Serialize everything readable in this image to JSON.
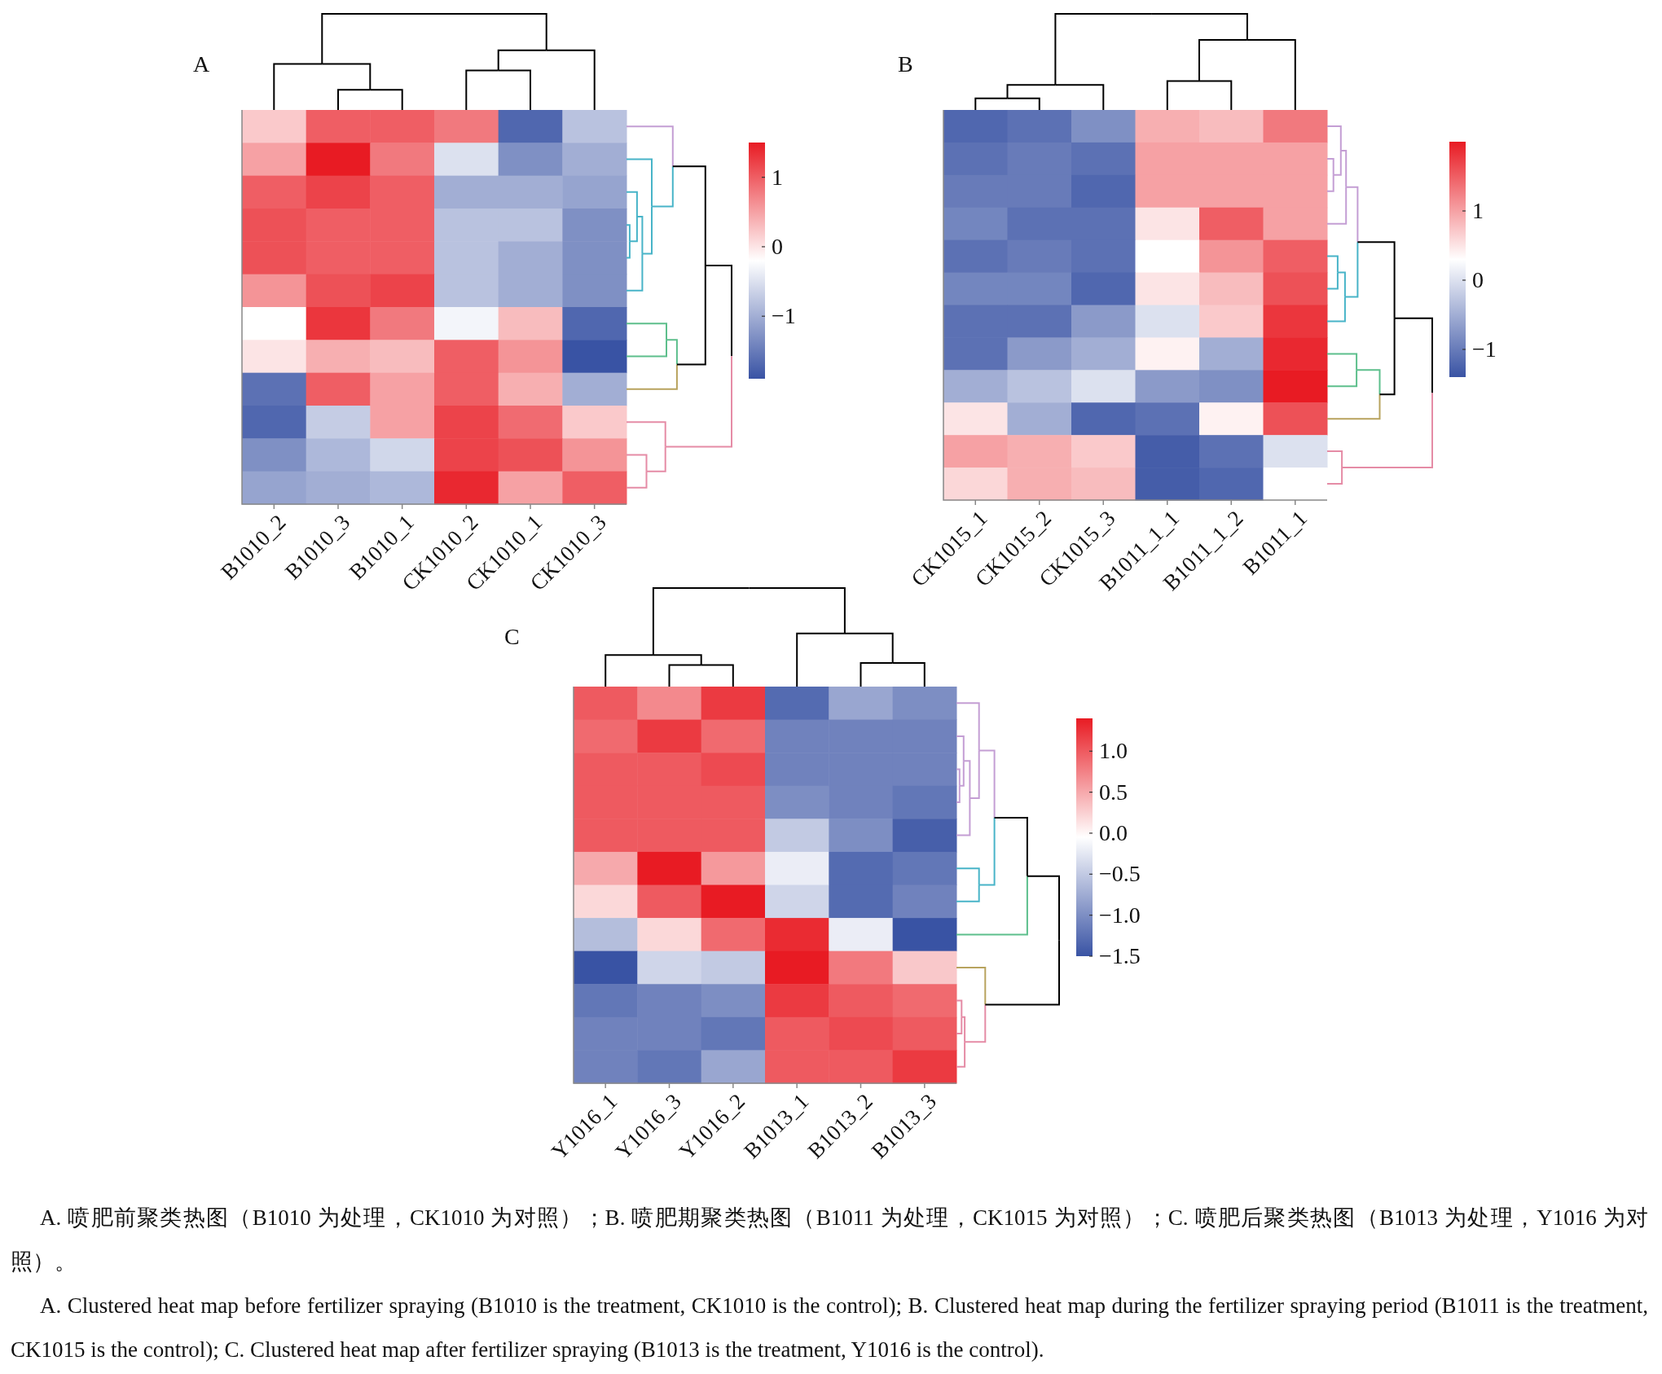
{
  "chart_data": [
    {
      "type": "heatmap",
      "title": "A",
      "categories": [
        "B1010_2",
        "B1010_3",
        "B1010_1",
        "CK1010_2",
        "CK1010_1",
        "CK1010_3"
      ],
      "y_categories": [
        null,
        null,
        null,
        null,
        null,
        null,
        null,
        null,
        null,
        null,
        null,
        null
      ],
      "cells": [
        [
          0.2,
          1.0,
          1.0,
          0.8,
          -1.7,
          -0.8
        ],
        [
          0.5,
          1.5,
          0.8,
          -0.5,
          -1.3,
          -1.0
        ],
        [
          1.0,
          1.2,
          1.0,
          -1.0,
          -1.0,
          -1.1
        ],
        [
          1.1,
          1.0,
          1.0,
          -0.8,
          -0.8,
          -1.3
        ],
        [
          1.1,
          1.0,
          1.0,
          -0.8,
          -1.0,
          -1.3
        ],
        [
          0.6,
          1.1,
          1.2,
          -0.8,
          -1.0,
          -1.3
        ],
        [
          -0.2,
          1.3,
          0.8,
          -0.3,
          0.3,
          -1.7
        ],
        [
          0.0,
          0.4,
          0.3,
          1.0,
          0.6,
          -1.9
        ],
        [
          -1.6,
          1.0,
          0.5,
          1.0,
          0.4,
          -1.0
        ],
        [
          -1.7,
          -0.7,
          0.5,
          1.2,
          0.9,
          0.2
        ],
        [
          -1.3,
          -0.9,
          -0.6,
          1.2,
          1.1,
          0.6
        ],
        [
          -1.1,
          -1.0,
          -0.9,
          1.4,
          0.5,
          1.0
        ]
      ],
      "clim": [
        -1.9,
        1.5
      ],
      "cticks": [
        {
          "value": 1,
          "label": "1"
        },
        {
          "value": 0,
          "label": "0"
        },
        {
          "value": -1,
          "label": "−1"
        }
      ]
    },
    {
      "type": "heatmap",
      "title": "B",
      "categories": [
        "CK1015_1",
        "CK1015_2",
        "CK1015_3",
        "B1011_1_1",
        "B1011_1_2",
        "B1011_1"
      ],
      "y_categories": [
        null,
        null,
        null,
        null,
        null,
        null,
        null,
        null,
        null,
        null,
        null,
        null
      ],
      "cells": [
        [
          -1.2,
          -1.1,
          -0.8,
          0.9,
          0.8,
          1.3
        ],
        [
          -1.1,
          -1.0,
          -1.1,
          1.0,
          1.0,
          1.0
        ],
        [
          -1.0,
          -1.0,
          -1.2,
          1.0,
          1.0,
          1.0
        ],
        [
          -0.9,
          -1.1,
          -1.1,
          0.5,
          1.5,
          1.0
        ],
        [
          -1.1,
          -1.0,
          -1.1,
          0.3,
          1.1,
          1.5
        ],
        [
          -0.9,
          -0.9,
          -1.2,
          0.5,
          0.8,
          1.6
        ],
        [
          -1.1,
          -1.1,
          -0.7,
          0.0,
          0.7,
          1.8
        ],
        [
          -1.1,
          -0.7,
          -0.5,
          0.4,
          -0.5,
          1.9
        ],
        [
          -0.5,
          -0.3,
          0.0,
          -0.7,
          -0.8,
          2.0
        ],
        [
          0.5,
          -0.5,
          -1.2,
          -1.1,
          0.4,
          1.6
        ],
        [
          1.0,
          0.9,
          0.7,
          -1.3,
          -1.1,
          0.0
        ],
        [
          0.6,
          0.9,
          0.8,
          -1.3,
          -1.2,
          0.3
        ]
      ],
      "clim": [
        -1.4,
        2.0
      ],
      "cticks": [
        {
          "value": 1,
          "label": "1"
        },
        {
          "value": 0,
          "label": "0"
        },
        {
          "value": -1,
          "label": "−1"
        }
      ]
    },
    {
      "type": "heatmap",
      "title": "C",
      "categories": [
        "Y1016_1",
        "Y1016_3",
        "Y1016_2",
        "B1013_1",
        "B1013_2",
        "B1013_3"
      ],
      "y_categories": [
        null,
        null,
        null,
        null,
        null,
        null,
        null,
        null,
        null,
        null,
        null,
        null
      ],
      "cells": [
        [
          1.0,
          0.7,
          1.2,
          -1.3,
          -0.8,
          -1.0
        ],
        [
          0.9,
          1.2,
          0.9,
          -1.1,
          -1.1,
          -1.1
        ],
        [
          1.0,
          1.0,
          1.1,
          -1.1,
          -1.1,
          -1.1
        ],
        [
          1.0,
          1.0,
          1.0,
          -1.0,
          -1.1,
          -1.2
        ],
        [
          1.0,
          1.0,
          1.0,
          -0.5,
          -1.0,
          -1.4
        ],
        [
          0.5,
          1.4,
          0.6,
          -0.2,
          -1.3,
          -1.2
        ],
        [
          0.2,
          1.0,
          1.4,
          -0.4,
          -1.3,
          -1.1
        ],
        [
          -0.6,
          0.2,
          0.9,
          1.3,
          -0.2,
          -1.5
        ],
        [
          -1.5,
          -0.4,
          -0.5,
          1.4,
          0.8,
          0.3
        ],
        [
          -1.2,
          -1.1,
          -1.0,
          1.2,
          1.0,
          0.9
        ],
        [
          -1.1,
          -1.1,
          -1.2,
          1.0,
          1.1,
          1.0
        ],
        [
          -1.1,
          -1.2,
          -0.8,
          1.0,
          1.0,
          1.2
        ]
      ],
      "clim": [
        -1.5,
        1.4
      ],
      "cticks": [
        {
          "value": 1.0,
          "label": "1.0"
        },
        {
          "value": 0.5,
          "label": "0.5"
        },
        {
          "value": 0.0,
          "label": "0.0"
        },
        {
          "value": -0.5,
          "label": "−0.5"
        },
        {
          "value": -1.0,
          "label": "−1.0"
        },
        {
          "value": -1.5,
          "label": "−1.5"
        }
      ]
    },
    {
      "type": "other",
      "annotations": [
        "A. 喷肥前聚类热图（B1010 为处理，CK1010 为对照）；B. 喷肥期聚类热图（B1011 为处理，CK1015 为对照）；C. 喷肥后聚类热图（B1013 为处理，Y1016 为对照）。",
        "A. Clustered heat map before fertilizer spraying (B1010 is the treatment, CK1010 is the control); B. Clustered heat map during the fertilizer spraying period (B1011 is the treatment, CK1015 is the control); C. Clustered heat map after fertilizer spraying (B1013 is the treatment, Y1016 is the control)."
      ]
    }
  ]
}
